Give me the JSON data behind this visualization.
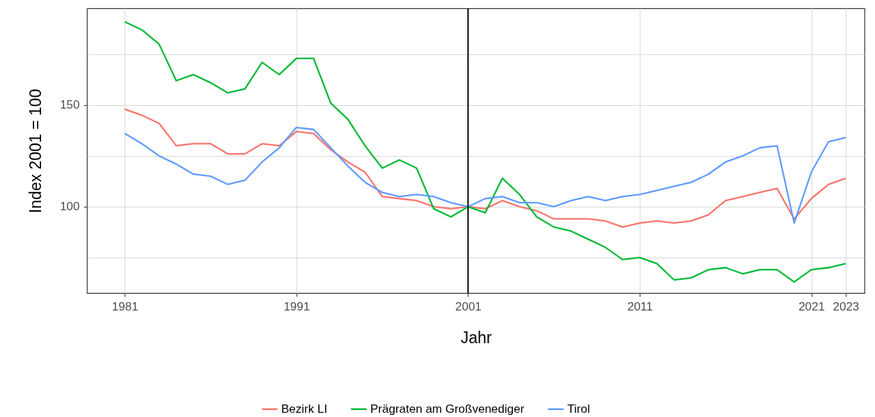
{
  "chart_data": {
    "type": "line",
    "xlabel": "Jahr",
    "ylabel": "Index 2001 = 100",
    "x": [
      1981,
      1982,
      1983,
      1984,
      1985,
      1986,
      1987,
      1988,
      1989,
      1990,
      1991,
      1992,
      1993,
      1994,
      1995,
      1996,
      1997,
      1998,
      1999,
      2000,
      2001,
      2002,
      2003,
      2004,
      2005,
      2006,
      2007,
      2008,
      2009,
      2010,
      2011,
      2012,
      2013,
      2014,
      2015,
      2016,
      2017,
      2018,
      2019,
      2020,
      2021,
      2022,
      2023
    ],
    "series": [
      {
        "name": "Bezirk LI",
        "color": "#f8766d",
        "values": [
          148,
          145,
          141,
          130,
          131,
          131,
          126,
          126,
          131,
          130,
          137,
          136,
          128,
          122,
          117,
          105,
          104,
          103,
          100,
          99,
          100,
          99,
          103,
          100,
          98,
          94,
          94,
          94,
          93,
          90,
          92,
          93,
          92,
          93,
          96,
          103,
          105,
          107,
          109,
          94,
          104,
          111,
          114
        ]
      },
      {
        "name": "Prägraten am Großvenediger",
        "color": "#00ba38",
        "values": [
          191,
          187,
          180,
          162,
          165,
          161,
          156,
          158,
          171,
          165,
          173,
          173,
          151,
          143,
          130,
          119,
          123,
          119,
          99,
          95,
          100,
          97,
          114,
          106,
          95,
          90,
          88,
          84,
          80,
          74,
          75,
          72,
          64,
          65,
          69,
          70,
          67,
          69,
          69,
          63,
          69,
          70,
          72
        ]
      },
      {
        "name": "Tirol",
        "color": "#619cff",
        "values": [
          136,
          131,
          125,
          121,
          116,
          115,
          111,
          113,
          122,
          129,
          139,
          138,
          129,
          120,
          112,
          107,
          105,
          106,
          105,
          102,
          100,
          104,
          105,
          102,
          102,
          100,
          103,
          105,
          103,
          105,
          106,
          108,
          110,
          112,
          116,
          122,
          125,
          129,
          130,
          92,
          117,
          132,
          134
        ]
      }
    ],
    "xlim": [
      1978.8,
      2024.1
    ],
    "xticks": [
      1981,
      1991,
      2001,
      2011,
      2021,
      2023
    ],
    "ylim": [
      57.5,
      197.6
    ],
    "yticks": [
      {
        "value": 75,
        "label": null
      },
      100,
      {
        "value": 125,
        "label": null
      },
      150,
      {
        "value": 175,
        "label": null
      }
    ],
    "ref_lines": [
      {
        "axis": "x",
        "value": 2001,
        "color": "#000000"
      }
    ],
    "grid": true,
    "legend": "bottom",
    "line_style": "solid",
    "marker": "none"
  }
}
